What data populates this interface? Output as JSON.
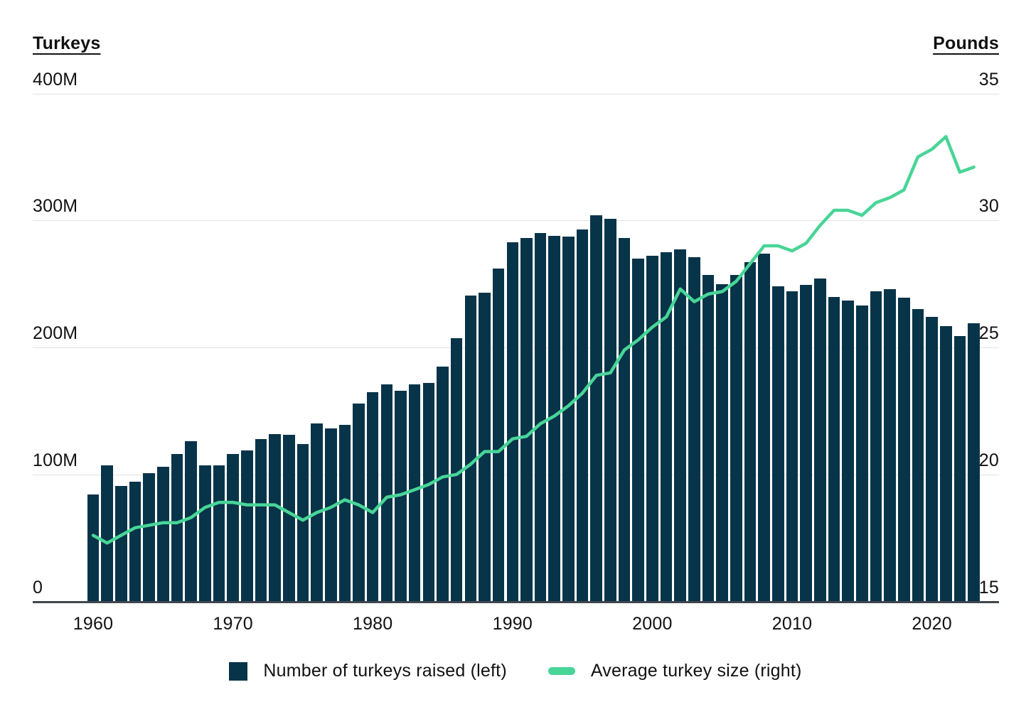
{
  "header": {
    "left_axis_title": "Turkeys",
    "right_axis_title": "Pounds"
  },
  "legend": {
    "items": [
      {
        "swatch": "bar-swatch",
        "label": "Number of turkeys raised (left)"
      },
      {
        "swatch": "line-swatch",
        "label": "Average turkey size (right)"
      }
    ]
  },
  "colors": {
    "bar": "#073449",
    "line": "#48d597",
    "gridline": "#e2e2e2",
    "axis_baseline": "#40474d",
    "text": "#111111"
  },
  "chart_data": {
    "type": "bar",
    "subtype": "dual-axis bar + line, yearly 1960-2023",
    "x": [
      1960,
      1961,
      1962,
      1963,
      1964,
      1965,
      1966,
      1967,
      1968,
      1969,
      1970,
      1971,
      1972,
      1973,
      1974,
      1975,
      1976,
      1977,
      1978,
      1979,
      1980,
      1981,
      1982,
      1983,
      1984,
      1985,
      1986,
      1987,
      1988,
      1989,
      1990,
      1991,
      1992,
      1993,
      1994,
      1995,
      1996,
      1997,
      1998,
      1999,
      2000,
      2001,
      2002,
      2003,
      2004,
      2005,
      2006,
      2007,
      2008,
      2009,
      2010,
      2011,
      2012,
      2013,
      2014,
      2015,
      2016,
      2017,
      2018,
      2019,
      2020,
      2021,
      2022,
      2023
    ],
    "series": [
      {
        "name": "Number of turkeys raised (left)",
        "type": "bar",
        "axis": "left",
        "unit": "turkeys, millions",
        "values": [
          84,
          107,
          91,
          94,
          101,
          106,
          116,
          126,
          107,
          107,
          116,
          119,
          128,
          132,
          131,
          124,
          140,
          136,
          139,
          156,
          165,
          171,
          166,
          171,
          172,
          185,
          207,
          241,
          243,
          262,
          283,
          286,
          290,
          288,
          287,
          293,
          304,
          301,
          286,
          270,
          272,
          275,
          277,
          271,
          257,
          250,
          257,
          267,
          274,
          248,
          244,
          249,
          254,
          240,
          237,
          233,
          244,
          246,
          239,
          230,
          224,
          217,
          209,
          219
        ]
      },
      {
        "name": "Average turkey size (right)",
        "type": "line",
        "axis": "right",
        "unit": "pounds",
        "values": [
          17.6,
          17.3,
          17.6,
          17.9,
          18.0,
          18.1,
          18.1,
          18.3,
          18.7,
          18.9,
          18.9,
          18.8,
          18.8,
          18.8,
          18.5,
          18.2,
          18.5,
          18.7,
          19.0,
          18.8,
          18.5,
          19.1,
          19.2,
          19.4,
          19.6,
          19.9,
          20.0,
          20.4,
          20.9,
          20.9,
          21.4,
          21.5,
          22.0,
          22.3,
          22.7,
          23.2,
          23.9,
          24.0,
          24.9,
          25.3,
          25.8,
          26.2,
          27.3,
          26.8,
          27.1,
          27.2,
          27.6,
          28.3,
          29.0,
          29.0,
          28.8,
          29.1,
          29.8,
          30.4,
          30.4,
          30.2,
          30.7,
          30.9,
          31.2,
          32.5,
          32.8,
          33.3,
          31.9,
          32.1
        ]
      }
    ],
    "left_axis": {
      "title": "Turkeys",
      "tick_labels": [
        "0",
        "100M",
        "200M",
        "300M",
        "400M"
      ],
      "tick_values": [
        0,
        100,
        200,
        300,
        400
      ],
      "range": [
        0,
        400
      ]
    },
    "right_axis": {
      "title": "Pounds",
      "tick_labels": [
        "15",
        "20",
        "25",
        "30",
        "35"
      ],
      "tick_values": [
        15,
        20,
        25,
        30,
        35
      ],
      "range": [
        15,
        35
      ]
    },
    "x_tick_labels": [
      "1960",
      "1970",
      "1980",
      "1990",
      "2000",
      "2010",
      "2020"
    ],
    "grid": "horizontal gridlines on",
    "legend_position": "bottom center"
  }
}
